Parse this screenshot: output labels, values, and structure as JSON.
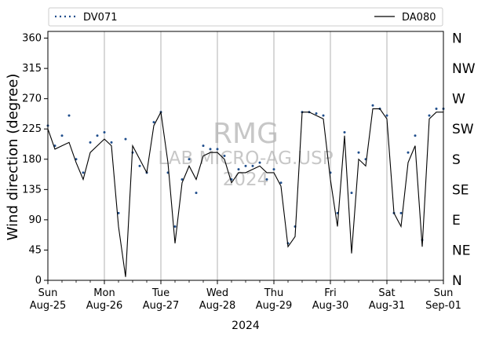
{
  "chart_data": {
    "type": "line",
    "xlabel": "2024",
    "ylabel": "Wind direction (degree)",
    "xlim": [
      "2024-08-25T00:00",
      "2024-09-01T00:00"
    ],
    "ylim": [
      0,
      370
    ],
    "yticks": [
      0,
      45,
      90,
      135,
      180,
      225,
      270,
      315,
      360
    ],
    "xticks": [
      {
        "day": "Sun",
        "date": "Aug-25"
      },
      {
        "day": "Mon",
        "date": "Aug-26"
      },
      {
        "day": "Tue",
        "date": "Aug-27"
      },
      {
        "day": "Wed",
        "date": "Aug-28"
      },
      {
        "day": "Thu",
        "date": "Aug-29"
      },
      {
        "day": "Fri",
        "date": "Aug-30"
      },
      {
        "day": "Sat",
        "date": "Aug-31"
      },
      {
        "day": "Sun",
        "date": "Sep-01"
      }
    ],
    "right_axis_labels": [
      "N",
      "NE",
      "E",
      "SE",
      "S",
      "SW",
      "W",
      "NW",
      "N"
    ],
    "grid": "vertical day lines",
    "legend_position": "top, above plot",
    "watermark": [
      "RMG",
      "LAB MICRO-AG.USP",
      "2024"
    ],
    "series": [
      {
        "name": "DV071",
        "style": "dotted markers",
        "color": "#1f4e8c",
        "x_hours": [
          0,
          3,
          6,
          9,
          12,
          15,
          18,
          21,
          24,
          27,
          30,
          33,
          36,
          39,
          42,
          45,
          48,
          51,
          54,
          57,
          60,
          63,
          66,
          69,
          72,
          75,
          78,
          81,
          84,
          87,
          90,
          93,
          96,
          99,
          102,
          105,
          108,
          111,
          114,
          117,
          120,
          123,
          126,
          129,
          132,
          135,
          138,
          141,
          144,
          147,
          150,
          153,
          156,
          159,
          162,
          165,
          168
        ],
        "y": [
          230,
          200,
          215,
          245,
          180,
          160,
          205,
          215,
          220,
          205,
          100,
          210,
          190,
          170,
          160,
          235,
          250,
          160,
          80,
          150,
          180,
          130,
          200,
          195,
          195,
          185,
          150,
          165,
          170,
          170,
          175,
          150,
          165,
          145,
          55,
          80,
          250,
          250,
          248,
          245,
          160,
          100,
          220,
          130,
          190,
          180,
          260,
          255,
          245,
          100,
          100,
          190,
          215,
          60,
          245,
          255,
          255
        ]
      },
      {
        "name": "DA080",
        "style": "solid line",
        "color": "#000000",
        "x_hours": [
          0,
          3,
          6,
          9,
          12,
          15,
          18,
          21,
          24,
          27,
          30,
          33,
          36,
          39,
          42,
          45,
          48,
          51,
          54,
          57,
          60,
          63,
          66,
          69,
          72,
          75,
          78,
          81,
          84,
          87,
          90,
          93,
          96,
          99,
          102,
          105,
          108,
          111,
          114,
          117,
          120,
          123,
          126,
          129,
          132,
          135,
          138,
          141,
          144,
          147,
          150,
          153,
          156,
          159,
          162,
          165,
          168
        ],
        "y": [
          225,
          195,
          200,
          205,
          175,
          150,
          190,
          200,
          210,
          200,
          80,
          5,
          200,
          180,
          160,
          230,
          250,
          175,
          55,
          145,
          170,
          150,
          185,
          190,
          190,
          180,
          145,
          160,
          160,
          165,
          170,
          160,
          160,
          140,
          50,
          65,
          250,
          250,
          245,
          240,
          150,
          80,
          215,
          40,
          180,
          170,
          255,
          255,
          240,
          100,
          80,
          175,
          200,
          50,
          240,
          250,
          250
        ]
      }
    ]
  }
}
